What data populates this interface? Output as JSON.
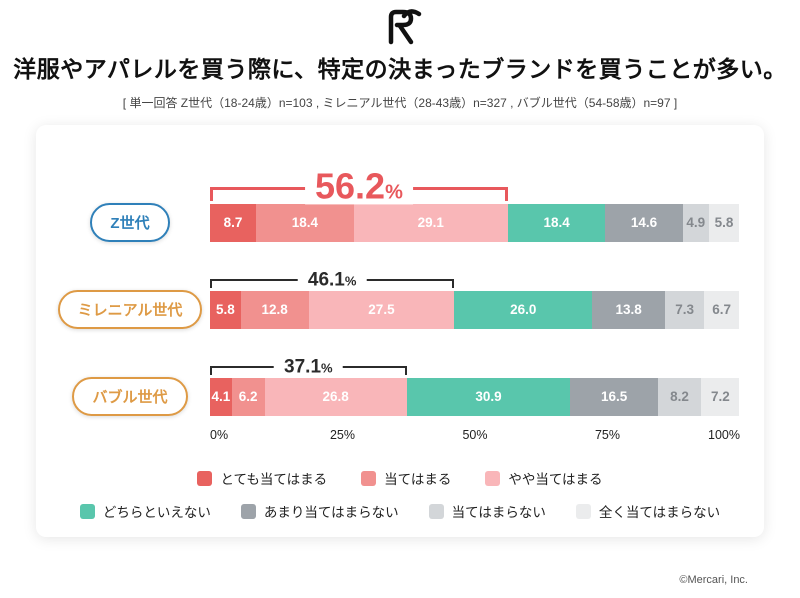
{
  "header": {
    "subtitle": "[ 単一回答 Z世代（18-24歳）n=103 , ミレニアル世代（28-43歳）n=327 , バブル世代（54-58歳）n=97 ]"
  },
  "footer": {
    "credit": "©Mercari, Inc."
  },
  "logo": {
    "name": "mercari-logo"
  },
  "chart_data": {
    "type": "bar",
    "stacked": true,
    "orientation": "horizontal",
    "title": "洋服やアパレルを買う際に、特定の決まったブランドを買うことが多い。",
    "categories": [
      "Z世代",
      "ミレニアル世代",
      "バブル世代"
    ],
    "series": [
      {
        "name": "とても当てはまる",
        "color": "#e8625f",
        "text_color": "#ffffff",
        "values": [
          8.7,
          5.8,
          4.1
        ]
      },
      {
        "name": "当てはまる",
        "color": "#f1918f",
        "text_color": "#ffffff",
        "values": [
          18.4,
          12.8,
          6.2
        ]
      },
      {
        "name": "やや当てはまる",
        "color": "#f9b6b9",
        "text_color": "#ffffff",
        "values": [
          29.1,
          27.5,
          26.8
        ]
      },
      {
        "name": "どちらといえない",
        "color": "#59c6ac",
        "text_color": "#ffffff",
        "values": [
          18.4,
          26.0,
          30.9
        ]
      },
      {
        "name": "あまり当てはまらない",
        "color": "#9da3a9",
        "text_color": "#ffffff",
        "values": [
          14.6,
          13.8,
          16.5
        ]
      },
      {
        "name": "当てはまらない",
        "color": "#d3d6d9",
        "text_color": "#84888d",
        "values": [
          4.9,
          7.3,
          8.2
        ]
      },
      {
        "name": "全く当てはまらない",
        "color": "#ebeced",
        "text_color": "#84888d",
        "values": [
          5.8,
          6.7,
          7.2
        ]
      }
    ],
    "bracket_span_series": 3,
    "brackets": [
      {
        "label": "56.2",
        "suffix": "%",
        "highlight": true,
        "color": "#e8585c"
      },
      {
        "label": "46.1",
        "suffix": "%",
        "highlight": false,
        "color": "#2b2b2b"
      },
      {
        "label": "37.1",
        "suffix": "%",
        "highlight": false,
        "color": "#2b2b2b"
      }
    ],
    "x_ticks": [
      "0%",
      "25%",
      "50%",
      "75%",
      "100%"
    ],
    "xlim": [
      0,
      100
    ],
    "legend_split": 3,
    "row_pills": [
      {
        "border": "#2f80b9",
        "text": "#2f80b9"
      },
      {
        "border": "#de9a45",
        "text": "#de9a45"
      },
      {
        "border": "#de9a45",
        "text": "#de9a45"
      }
    ]
  }
}
